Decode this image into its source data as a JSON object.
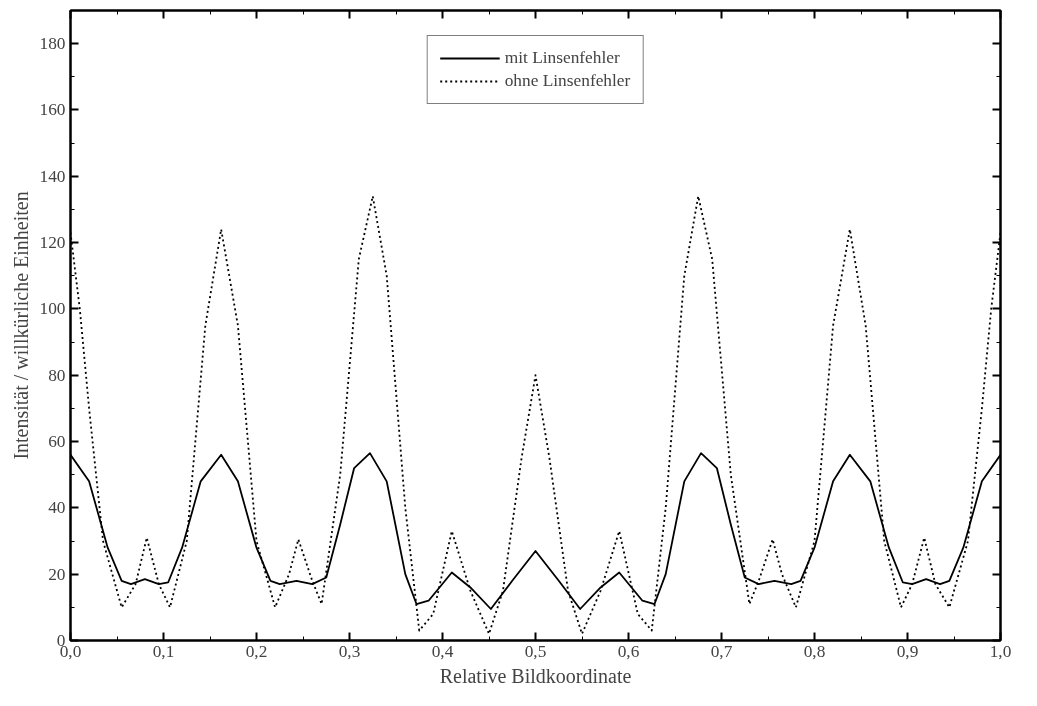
{
  "chart_data": {
    "type": "line",
    "xlabel": "Relative Bildkoordinate",
    "ylabel": "Intensität / willkürliche Einheiten",
    "xlim": [
      0,
      1
    ],
    "ylim": [
      0,
      190
    ],
    "xticks": [
      {
        "value": 0,
        "label": "0,0"
      },
      {
        "value": 0.1,
        "label": "0,1"
      },
      {
        "value": 0.2,
        "label": "0,2"
      },
      {
        "value": 0.3,
        "label": "0,3"
      },
      {
        "value": 0.4,
        "label": "0,4"
      },
      {
        "value": 0.5,
        "label": "0,5"
      },
      {
        "value": 0.6,
        "label": "0,6"
      },
      {
        "value": 0.7,
        "label": "0,7"
      },
      {
        "value": 0.8,
        "label": "0,8"
      },
      {
        "value": 0.9,
        "label": "0,9"
      },
      {
        "value": 1,
        "label": "1,0"
      }
    ],
    "yticks": [
      0,
      20,
      40,
      60,
      80,
      100,
      120,
      140,
      160,
      180
    ],
    "grid": false,
    "legend": "top",
    "marker": "none",
    "series": [
      {
        "name": "mit Linsenfehler",
        "color": "#000000",
        "line_style": "solid",
        "x": [
          0,
          0.02,
          0.04,
          0.055,
          0.065,
          0.08,
          0.095,
          0.105,
          0.12,
          0.14,
          0.162,
          0.18,
          0.2,
          0.215,
          0.225,
          0.243,
          0.26,
          0.275,
          0.29,
          0.305,
          0.322,
          0.34,
          0.36,
          0.372,
          0.385,
          0.41,
          0.43,
          0.452,
          0.475,
          0.5,
          0.525,
          0.548,
          0.57,
          0.59,
          0.615,
          0.628,
          0.64,
          0.66,
          0.678,
          0.695,
          0.71,
          0.725,
          0.74,
          0.757,
          0.775,
          0.785,
          0.8,
          0.82,
          0.838,
          0.86,
          0.88,
          0.895,
          0.905,
          0.92,
          0.935,
          0.945,
          0.96,
          0.98,
          1.0
        ],
        "values": [
          56,
          48,
          28,
          18,
          17,
          18.5,
          17,
          17.5,
          28,
          48,
          56,
          48,
          28,
          18,
          17,
          18,
          17,
          19,
          35,
          52,
          56.5,
          48,
          20,
          11,
          12,
          20.5,
          16,
          9.5,
          18,
          27,
          18,
          9.5,
          16,
          20.5,
          12,
          11,
          20,
          48,
          56.5,
          52,
          35,
          19,
          17,
          18,
          17,
          18,
          28,
          48,
          56,
          48,
          28,
          17.5,
          17,
          18.5,
          17,
          18,
          28,
          48,
          56
        ]
      },
      {
        "name": "ohne Linsenfehler",
        "color": "#000000",
        "line_style": "dotted",
        "x": [
          0,
          0.01,
          0.02,
          0.035,
          0.055,
          0.07,
          0.082,
          0.095,
          0.107,
          0.125,
          0.145,
          0.162,
          0.18,
          0.2,
          0.22,
          0.235,
          0.245,
          0.26,
          0.27,
          0.29,
          0.31,
          0.325,
          0.34,
          0.36,
          0.375,
          0.39,
          0.41,
          0.43,
          0.45,
          0.465,
          0.485,
          0.5,
          0.515,
          0.535,
          0.55,
          0.57,
          0.59,
          0.61,
          0.625,
          0.64,
          0.66,
          0.675,
          0.69,
          0.71,
          0.73,
          0.74,
          0.755,
          0.765,
          0.78,
          0.8,
          0.82,
          0.838,
          0.855,
          0.875,
          0.893,
          0.905,
          0.918,
          0.93,
          0.945,
          0.965,
          0.98,
          0.99,
          1.0
        ],
        "values": [
          123,
          100,
          70,
          30,
          10,
          17,
          31,
          17,
          10,
          30,
          95,
          124,
          95,
          30,
          10,
          20,
          30.5,
          18,
          11,
          50,
          115,
          134,
          110,
          40,
          3,
          8,
          33,
          15,
          2,
          15,
          55,
          80,
          55,
          15,
          2,
          15,
          33,
          8,
          3,
          40,
          110,
          134,
          115,
          50,
          11,
          18,
          30.5,
          20,
          10,
          30,
          95,
          124,
          95,
          30,
          10,
          17,
          31,
          17,
          10,
          30,
          70,
          100,
          123
        ]
      }
    ]
  }
}
